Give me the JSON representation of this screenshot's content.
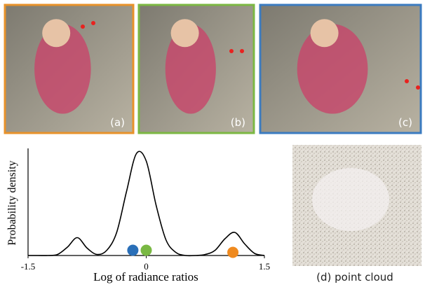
{
  "panels": [
    {
      "label": "(a)",
      "color": "#e8922a"
    },
    {
      "label": "(b)",
      "color": "#7cb843"
    },
    {
      "label": "(c)",
      "color": "#3b7bc0"
    }
  ],
  "point_cloud": {
    "caption": "(d) point cloud"
  },
  "chart_data": {
    "type": "line",
    "ylabel": "Probability density",
    "xlabel": "Log of radiance ratios",
    "xlim": [
      -1.5,
      1.5
    ],
    "ylim": [
      0,
      1.1
    ],
    "xticks": [
      -1.5,
      0,
      1.5
    ],
    "series": [
      {
        "color": "#000000",
        "x": [
          -1.5,
          -1.375,
          -1.25,
          -1.125,
          -1.0,
          -0.875,
          -0.75,
          -0.625,
          -0.5,
          -0.375,
          -0.25,
          -0.125,
          0,
          0.125,
          0.25,
          0.375,
          0.5,
          0.625,
          0.75,
          0.875,
          1.0,
          1.125,
          1.25,
          1.375,
          1.5
        ],
        "values": [
          0,
          0,
          0,
          0.01,
          0.08,
          0.17,
          0.07,
          0.01,
          0.05,
          0.22,
          0.61,
          0.97,
          0.9,
          0.48,
          0.15,
          0.03,
          0,
          0,
          0.01,
          0.05,
          0.16,
          0.22,
          0.11,
          0.02,
          0
        ]
      }
    ],
    "markers": [
      {
        "x": -0.17,
        "y": 0.05,
        "color": "#2a6fb8"
      },
      {
        "x": 0.0,
        "y": 0.05,
        "color": "#79b843"
      },
      {
        "x": 1.1,
        "y": 0.03,
        "color": "#ef8a1f"
      }
    ]
  }
}
